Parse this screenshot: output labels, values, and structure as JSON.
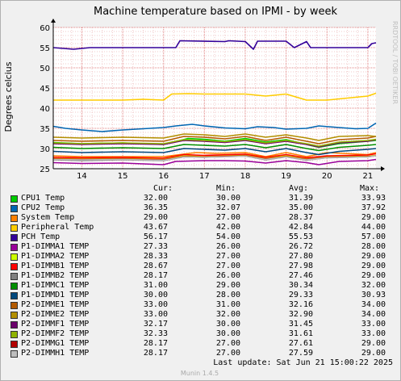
{
  "chart_data": {
    "type": "line",
    "title": "Machine temperature based on IPMI - by week",
    "ylabel": "Degrees celcius",
    "xlabel": "",
    "ylim": [
      25,
      60
    ],
    "yticks": [
      25,
      30,
      35,
      40,
      45,
      50,
      55,
      60
    ],
    "x_tick_labels": [
      "14",
      "15",
      "16",
      "17",
      "18",
      "19",
      "20",
      "21"
    ],
    "x_range_days": [
      13.3,
      21.2
    ],
    "grid": true,
    "legend_position": "bottom",
    "watermark": "RRDTOOL / TOBI OETIKER",
    "series": [
      {
        "name": "CPU1 Temp",
        "color": "#00cc00",
        "cur": "32.00",
        "min": "30.00",
        "avg": "31.39",
        "max": "33.93",
        "x": [
          13.3,
          14.0,
          15.0,
          16.0,
          16.6,
          17.0,
          17.5,
          18.0,
          18.5,
          19.0,
          19.5,
          19.8,
          20.3,
          21.0,
          21.2
        ],
        "values": [
          31.5,
          31.2,
          31.4,
          31.0,
          32.5,
          32.3,
          31.8,
          32.5,
          31.6,
          32.2,
          31.0,
          30.3,
          31.2,
          31.8,
          32.0
        ]
      },
      {
        "name": "CPU2 Temp",
        "color": "#0066b3",
        "cur": "36.35",
        "min": "32.07",
        "avg": "35.00",
        "max": "37.92",
        "x": [
          13.3,
          13.6,
          14.0,
          14.5,
          15.0,
          15.5,
          16.0,
          16.3,
          16.7,
          17.0,
          17.5,
          18.0,
          18.3,
          18.7,
          19.0,
          19.5,
          19.8,
          20.3,
          20.7,
          21.0,
          21.2
        ],
        "values": [
          35.5,
          35.0,
          34.6,
          34.2,
          34.6,
          34.9,
          35.2,
          35.6,
          36.0,
          35.6,
          35.1,
          34.9,
          35.4,
          35.2,
          34.8,
          35.0,
          35.6,
          35.2,
          34.9,
          35.0,
          36.3
        ]
      },
      {
        "name": "System Temp",
        "color": "#ff8000",
        "cur": "29.00",
        "min": "27.00",
        "avg": "28.37",
        "max": "29.00",
        "x": [
          13.3,
          14.0,
          15.0,
          16.0,
          16.8,
          17.3,
          18.0,
          18.5,
          19.0,
          19.5,
          20.0,
          21.0,
          21.2
        ],
        "values": [
          28.2,
          28.0,
          28.0,
          28.0,
          29.0,
          28.8,
          29.0,
          28.0,
          29.0,
          28.0,
          29.0,
          28.5,
          29.0
        ]
      },
      {
        "name": "Peripheral Temp",
        "color": "#ffcc00",
        "cur": "43.67",
        "min": "42.00",
        "avg": "42.84",
        "max": "44.00",
        "x": [
          13.3,
          14.0,
          14.5,
          15.0,
          15.5,
          16.0,
          16.2,
          16.6,
          17.0,
          17.5,
          18.0,
          18.5,
          19.0,
          19.5,
          20.0,
          20.5,
          21.0,
          21.2
        ],
        "values": [
          42.0,
          42.0,
          42.0,
          42.0,
          42.2,
          42.0,
          43.5,
          43.6,
          43.5,
          43.5,
          43.5,
          43.0,
          43.5,
          42.0,
          42.0,
          42.5,
          43.0,
          43.7
        ]
      },
      {
        "name": "PCH Temp",
        "color": "#330099",
        "cur": "56.17",
        "min": "54.00",
        "avg": "55.53",
        "max": "57.00",
        "x": [
          13.3,
          13.8,
          14.2,
          15.0,
          15.5,
          16.0,
          16.3,
          16.4,
          17.5,
          17.6,
          18.0,
          18.2,
          18.3,
          19.0,
          19.2,
          19.5,
          19.6,
          20.5,
          21.0,
          21.1,
          21.2
        ],
        "values": [
          55.0,
          54.6,
          55.0,
          55.0,
          55.0,
          55.0,
          55.0,
          56.7,
          56.5,
          56.7,
          56.5,
          54.6,
          56.6,
          56.6,
          55.0,
          56.5,
          55.0,
          55.0,
          55.0,
          56.0,
          56.2
        ]
      },
      {
        "name": "P1-DIMMA1 TEMP",
        "color": "#990099",
        "cur": "27.33",
        "min": "26.00",
        "avg": "26.72",
        "max": "28.00",
        "x": [
          13.3,
          14.0,
          15.0,
          15.5,
          16.0,
          16.3,
          17.0,
          17.5,
          18.0,
          18.5,
          19.0,
          19.5,
          19.8,
          20.3,
          21.0,
          21.2
        ],
        "values": [
          26.5,
          26.3,
          26.4,
          26.2,
          26.0,
          26.8,
          27.0,
          27.0,
          26.9,
          26.4,
          27.0,
          26.5,
          26.0,
          26.8,
          27.0,
          27.3
        ]
      },
      {
        "name": "P1-DIMMA2 TEMP",
        "color": "#ccff00",
        "cur": "28.33",
        "min": "27.00",
        "avg": "27.80",
        "max": "29.00",
        "x": [
          13.3,
          14.0,
          15.0,
          16.0,
          16.5,
          17.0,
          18.0,
          18.5,
          19.0,
          19.5,
          20.0,
          21.0,
          21.2
        ],
        "values": [
          27.6,
          27.5,
          27.6,
          27.4,
          28.2,
          28.0,
          28.4,
          27.6,
          28.2,
          27.5,
          28.0,
          28.1,
          28.3
        ]
      },
      {
        "name": "P1-DIMMB1 TEMP",
        "color": "#ff0000",
        "cur": "28.67",
        "min": "27.00",
        "avg": "27.98",
        "max": "29.00",
        "x": [
          13.3,
          14.0,
          15.0,
          16.0,
          16.5,
          17.0,
          18.0,
          18.5,
          19.0,
          19.5,
          20.0,
          21.0,
          21.2
        ],
        "values": [
          27.8,
          27.7,
          27.8,
          27.6,
          28.5,
          28.3,
          28.6,
          27.8,
          28.5,
          27.7,
          28.2,
          28.4,
          28.7
        ]
      },
      {
        "name": "P1-DIMMB2 TEMP",
        "color": "#808080",
        "cur": "28.17",
        "min": "26.00",
        "avg": "27.46",
        "max": "29.00",
        "x": [
          13.3,
          14.0,
          15.0,
          16.0,
          16.5,
          17.0,
          18.0,
          18.5,
          19.0,
          19.5,
          20.0,
          21.0,
          21.2
        ],
        "values": [
          27.2,
          27.0,
          27.2,
          27.0,
          27.9,
          27.8,
          28.1,
          27.2,
          27.9,
          27.1,
          27.7,
          27.9,
          28.2
        ]
      },
      {
        "name": "P1-DIMMC1 TEMP",
        "color": "#008f00",
        "cur": "31.00",
        "min": "29.00",
        "avg": "30.34",
        "max": "32.00",
        "x": [
          13.3,
          14.0,
          15.0,
          16.0,
          16.5,
          17.0,
          17.5,
          18.0,
          18.5,
          19.0,
          19.5,
          19.8,
          20.3,
          21.0,
          21.2
        ],
        "values": [
          30.3,
          30.0,
          30.2,
          30.0,
          31.0,
          30.8,
          30.6,
          31.0,
          30.2,
          31.0,
          30.0,
          29.5,
          30.3,
          30.8,
          31.0
        ]
      },
      {
        "name": "P1-DIMMD1 TEMP",
        "color": "#00487d",
        "cur": "30.00",
        "min": "28.00",
        "avg": "29.33",
        "max": "30.93",
        "x": [
          13.3,
          14.0,
          15.0,
          16.0,
          16.5,
          17.0,
          17.5,
          18.0,
          18.5,
          19.0,
          19.5,
          19.8,
          20.3,
          21.0,
          21.2
        ],
        "values": [
          29.3,
          29.0,
          29.2,
          29.0,
          30.0,
          29.8,
          29.6,
          30.0,
          29.2,
          30.0,
          29.0,
          28.5,
          29.3,
          29.8,
          30.0
        ]
      },
      {
        "name": "P2-DIMME1 TEMP",
        "color": "#b35a00",
        "cur": "33.00",
        "min": "31.00",
        "avg": "32.16",
        "max": "34.00",
        "x": [
          13.3,
          14.0,
          15.0,
          16.0,
          16.5,
          17.0,
          17.5,
          18.0,
          18.5,
          19.0,
          19.5,
          19.8,
          20.3,
          21.0,
          21.2
        ],
        "values": [
          32.0,
          31.8,
          32.0,
          31.8,
          33.0,
          32.8,
          32.4,
          33.0,
          32.0,
          32.8,
          31.8,
          31.2,
          32.2,
          32.6,
          33.0
        ]
      },
      {
        "name": "P2-DIMME2 TEMP",
        "color": "#b38f00",
        "cur": "33.00",
        "min": "32.00",
        "avg": "32.90",
        "max": "34.00",
        "x": [
          13.3,
          14.0,
          15.0,
          16.0,
          16.5,
          17.0,
          17.5,
          18.0,
          18.5,
          19.0,
          19.5,
          19.8,
          20.3,
          21.0,
          21.2
        ],
        "values": [
          32.8,
          32.6,
          32.8,
          32.6,
          33.6,
          33.4,
          33.0,
          33.6,
          32.8,
          33.4,
          32.6,
          32.0,
          33.0,
          33.2,
          33.0
        ]
      },
      {
        "name": "P2-DIMMF1 TEMP",
        "color": "#6b006b",
        "cur": "32.17",
        "min": "30.00",
        "avg": "31.45",
        "max": "33.00",
        "x": [
          13.3,
          14.0,
          15.0,
          16.0,
          16.5,
          17.0,
          17.5,
          18.0,
          18.5,
          19.0,
          19.5,
          19.8,
          20.3,
          21.0,
          21.2
        ],
        "values": [
          31.2,
          31.0,
          31.2,
          31.0,
          32.0,
          31.8,
          31.5,
          32.0,
          31.2,
          31.8,
          31.0,
          30.4,
          31.4,
          31.8,
          32.2
        ]
      },
      {
        "name": "P2-DIMMF2 TEMP",
        "color": "#8fb300",
        "cur": "32.33",
        "min": "30.00",
        "avg": "31.61",
        "max": "33.00",
        "x": [
          13.3,
          14.0,
          15.0,
          16.0,
          16.5,
          17.0,
          17.5,
          18.0,
          18.5,
          19.0,
          19.5,
          19.8,
          20.3,
          21.0,
          21.2
        ],
        "values": [
          31.4,
          31.2,
          31.4,
          31.2,
          32.2,
          32.0,
          31.7,
          32.2,
          31.4,
          32.0,
          31.2,
          30.6,
          31.6,
          32.0,
          32.3
        ]
      },
      {
        "name": "P2-DIMMG1 TEMP",
        "color": "#b30000",
        "cur": "28.17",
        "min": "27.00",
        "avg": "27.61",
        "max": "29.00",
        "x": [
          13.3,
          14.0,
          15.0,
          16.0,
          16.5,
          17.0,
          18.0,
          18.5,
          19.0,
          19.5,
          20.0,
          21.0,
          21.2
        ],
        "values": [
          27.4,
          27.3,
          27.4,
          27.2,
          28.0,
          27.9,
          28.2,
          27.4,
          28.0,
          27.3,
          27.8,
          28.0,
          28.2
        ]
      },
      {
        "name": "P2-DIMMH1 TEMP",
        "color": "#bebebe",
        "cur": "28.17",
        "min": "27.00",
        "avg": "27.59",
        "max": "29.00",
        "x": [
          13.3,
          14.0,
          15.0,
          16.0,
          16.5,
          17.0,
          18.0,
          18.5,
          19.0,
          19.5,
          20.0,
          21.0,
          21.2
        ],
        "values": [
          27.3,
          27.2,
          27.3,
          27.1,
          27.9,
          27.8,
          28.1,
          27.3,
          27.9,
          27.2,
          27.7,
          27.9,
          28.2
        ]
      }
    ]
  },
  "legend_headers": {
    "cur": "Cur:",
    "min": "Min:",
    "avg": "Avg:",
    "max": "Max:"
  },
  "last_update": "Last update:  Sat Jun 21 15:00:22 2025",
  "munin_version": "Munin 1.4.5"
}
